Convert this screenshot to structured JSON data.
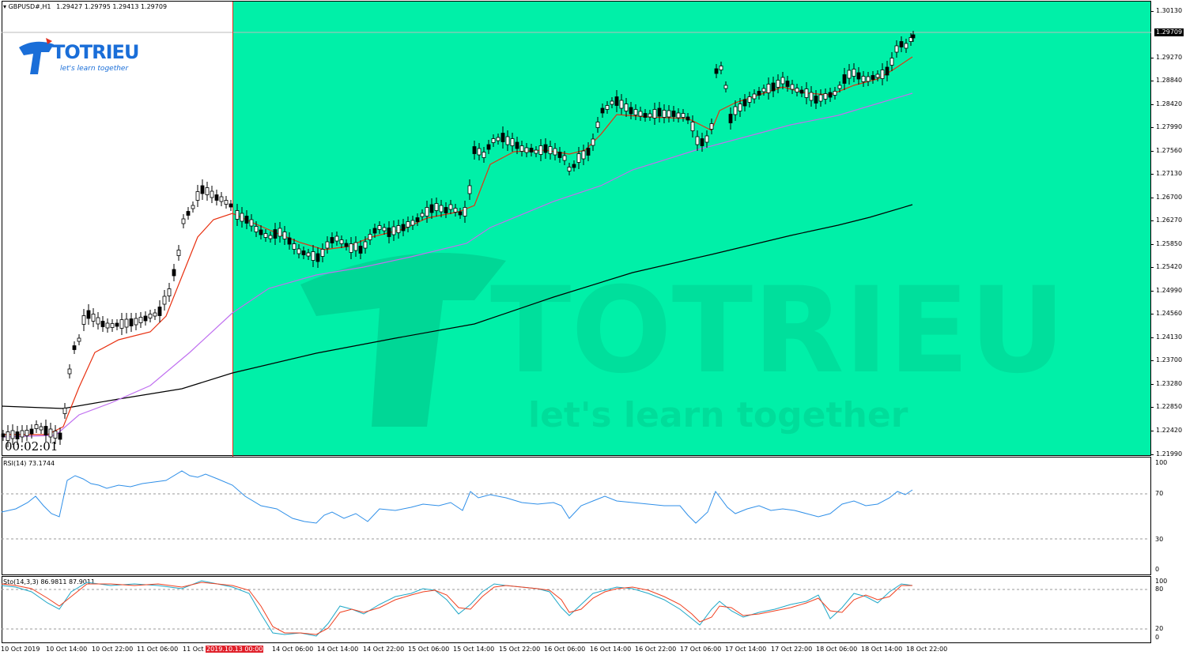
{
  "header": {
    "symbol": "GBPUSD#,H1",
    "ohlc": "1.29427 1.29795 1.29413 1.29709"
  },
  "logo": {
    "brand": "TOTRIEU",
    "tagline": "let's learn together"
  },
  "watermark": {
    "brand": "TOTRIEU",
    "tagline": "let's learn together"
  },
  "countdown": "00:02:01",
  "current_price": "1.29709",
  "price_axis": [
    "1.30130",
    "1.29270",
    "1.28840",
    "1.28420",
    "1.27990",
    "1.27560",
    "1.27130",
    "1.26700",
    "1.26270",
    "1.25850",
    "1.25420",
    "1.24990",
    "1.24560",
    "1.24130",
    "1.23700",
    "1.23280",
    "1.22850",
    "1.22420",
    "1.21990"
  ],
  "rsi": {
    "label": "RSI(14) 73.1744",
    "levels": [
      "100",
      "70",
      "30",
      "0"
    ]
  },
  "stoch": {
    "label": "Sto(14,3,3) 86.9811 87.9011",
    "levels": [
      "100",
      "80",
      "20",
      "0"
    ]
  },
  "time_axis": [
    "10 Oct 2019",
    "10 Oct 14:00",
    "10 Oct 22:00",
    "11 Oct 06:00",
    "11 Oct",
    "2019.10.13 00:00",
    "14 Oct 06:00",
    "14 Oct 14:00",
    "14 Oct 22:00",
    "15 Oct 06:00",
    "15 Oct 14:00",
    "15 Oct 22:00",
    "16 Oct 06:00",
    "16 Oct 14:00",
    "16 Oct 22:00",
    "17 Oct 06:00",
    "17 Oct 14:00",
    "17 Oct 22:00",
    "18 Oct 06:00",
    "18 Oct 14:00",
    "18 Oct 22:00"
  ],
  "colors": {
    "highlight": "#00f0a8",
    "rsi_line": "#2f8fe8",
    "stoch_main": "#20a8c8",
    "stoch_signal": "#f04020",
    "ma_fast": "#e83010",
    "ma_mid": "#c070f0",
    "ma_slow": "#000000",
    "marker": "#e03020",
    "brand_blue": "#1a6ed8"
  }
}
